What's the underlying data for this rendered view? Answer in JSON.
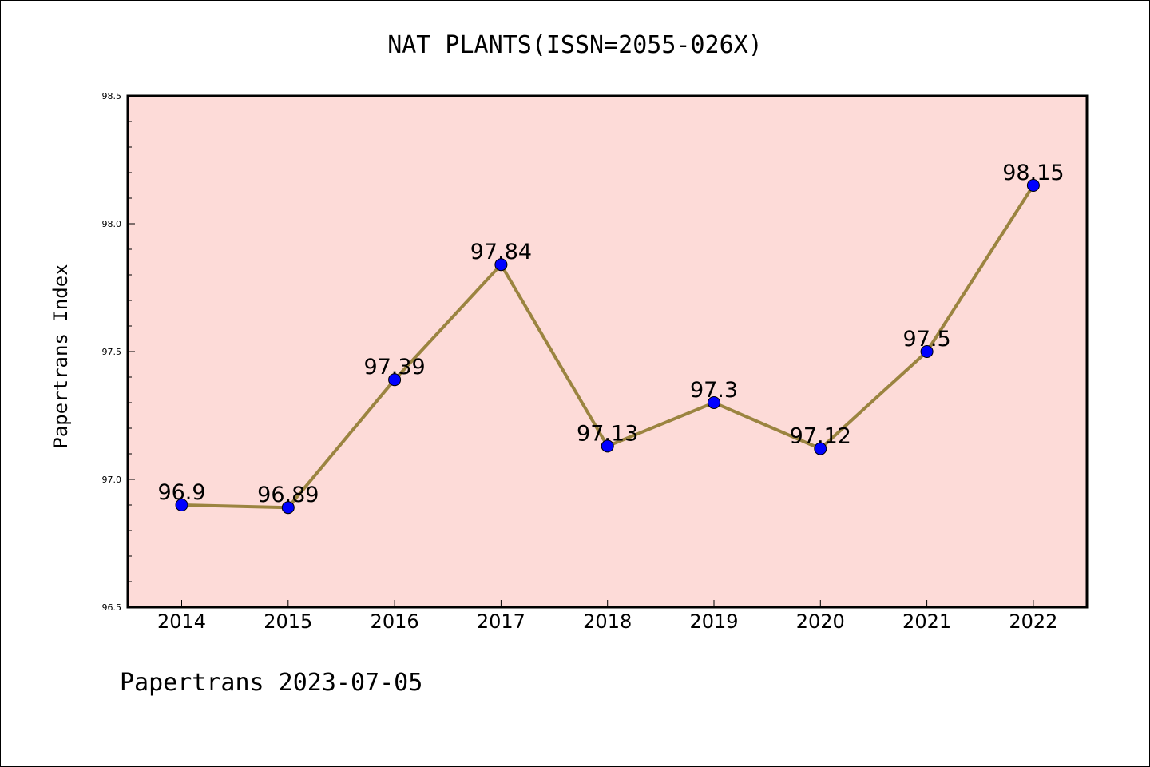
{
  "chart_data": {
    "type": "line",
    "title": "NAT PLANTS(ISSN=2055-026X)",
    "ylabel": "Papertrans Index",
    "xlabel": "",
    "categories": [
      "2014",
      "2015",
      "2016",
      "2017",
      "2018",
      "2019",
      "2020",
      "2021",
      "2022"
    ],
    "series": [
      {
        "values": [
          96.9,
          96.89,
          97.39,
          97.84,
          97.13,
          97.3,
          97.12,
          97.5,
          98.15
        ],
        "labels": [
          "96.9",
          "96.89",
          "97.39",
          "97.84",
          "97.13",
          "97.3",
          "97.12",
          "97.5",
          "98.15"
        ]
      }
    ],
    "ylim": [
      96.5,
      98.5
    ],
    "yticks": [
      "96.5",
      "97.0",
      "97.5",
      "98.0",
      "98.5"
    ],
    "grid": false,
    "colors": {
      "plot_background": "#fddbd8",
      "line": "#9b8440",
      "marker": "#0000ff"
    }
  },
  "footer": "Papertrans 2023-07-05"
}
